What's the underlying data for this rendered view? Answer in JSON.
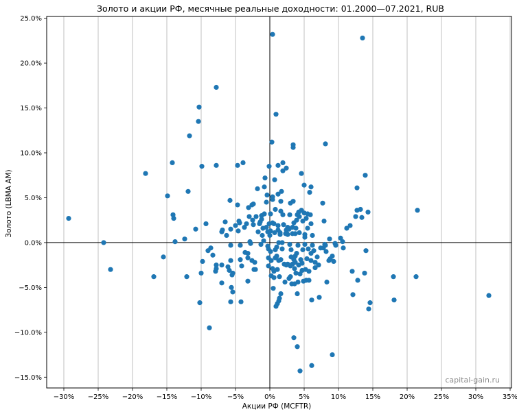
{
  "chart_data": {
    "type": "scatter",
    "title": "Золото и акции РФ, месячные реальные доходности: 01.2000—07.2021, RUB",
    "xlabel": "Акции РФ (MCFTR)",
    "ylabel": "Золото (LBMA AM)",
    "xlim": [
      -0.325,
      0.352
    ],
    "ylim": [
      -0.162,
      0.252
    ],
    "x_ticks": [
      -0.3,
      -0.25,
      -0.2,
      -0.15,
      -0.1,
      -0.05,
      0.0,
      0.05,
      0.1,
      0.15,
      0.2,
      0.25,
      0.3,
      0.35
    ],
    "x_tick_labels": [
      "−30%",
      "−25%",
      "−20%",
      "−15%",
      "−10%",
      "−5%",
      "0%",
      "5%",
      "10%",
      "15%",
      "20%",
      "25%",
      "30%",
      "35%"
    ],
    "y_ticks": [
      -0.15,
      -0.1,
      -0.05,
      0.0,
      0.05,
      0.1,
      0.15,
      0.2,
      0.25
    ],
    "y_tick_labels": [
      "−15.0%",
      "−10.0%",
      "−5.0%",
      "0.0%",
      "5.0%",
      "10.0%",
      "15.0%",
      "20.0%",
      "25.0%"
    ],
    "grid": "vertical",
    "marker_color": "#1f77b4",
    "watermark": "capital-gain.ru",
    "points": [
      [
        -0.293,
        0.027
      ],
      [
        -0.242,
        0.0
      ],
      [
        -0.232,
        -0.03
      ],
      [
        -0.181,
        0.077
      ],
      [
        -0.169,
        -0.038
      ],
      [
        -0.155,
        -0.016
      ],
      [
        -0.149,
        0.052
      ],
      [
        -0.142,
        0.089
      ],
      [
        -0.141,
        0.031
      ],
      [
        -0.14,
        0.027
      ],
      [
        -0.138,
        0.001
      ],
      [
        -0.124,
        0.004
      ],
      [
        -0.121,
        -0.038
      ],
      [
        -0.119,
        0.057
      ],
      [
        -0.117,
        0.119
      ],
      [
        -0.108,
        0.015
      ],
      [
        -0.103,
        0.151
      ],
      [
        -0.104,
        0.135
      ],
      [
        -0.102,
        -0.067
      ],
      [
        -0.099,
        0.085
      ],
      [
        -0.098,
        -0.021
      ],
      [
        -0.1,
        -0.034
      ],
      [
        -0.093,
        0.021
      ],
      [
        -0.088,
        -0.095
      ],
      [
        -0.086,
        -0.006
      ],
      [
        -0.083,
        -0.014
      ],
      [
        -0.09,
        -0.009
      ],
      [
        -0.078,
        0.173
      ],
      [
        -0.078,
        0.086
      ],
      [
        -0.078,
        -0.025
      ],
      [
        -0.079,
        -0.032
      ],
      [
        -0.078,
        -0.029
      ],
      [
        -0.07,
        0.012
      ],
      [
        -0.07,
        -0.025
      ],
      [
        -0.07,
        -0.045
      ],
      [
        -0.069,
        0.014
      ],
      [
        -0.065,
        0.023
      ],
      [
        -0.063,
        0.008
      ],
      [
        -0.061,
        -0.027
      ],
      [
        -0.059,
        -0.031
      ],
      [
        -0.058,
        0.047
      ],
      [
        -0.057,
        0.015
      ],
      [
        -0.057,
        -0.003
      ],
      [
        -0.057,
        -0.02
      ],
      [
        -0.056,
        -0.05
      ],
      [
        -0.057,
        -0.066
      ],
      [
        -0.055,
        -0.036
      ],
      [
        -0.054,
        -0.034
      ],
      [
        -0.054,
        -0.055
      ],
      [
        -0.05,
        0.019
      ],
      [
        -0.047,
        0.042
      ],
      [
        -0.047,
        0.086
      ],
      [
        -0.046,
        0.013
      ],
      [
        -0.045,
        0.024
      ],
      [
        -0.044,
        0.022
      ],
      [
        -0.043,
        -0.003
      ],
      [
        -0.043,
        -0.019
      ],
      [
        -0.041,
        -0.026
      ],
      [
        -0.042,
        -0.066
      ],
      [
        -0.039,
        0.089
      ],
      [
        -0.037,
        0.017
      ],
      [
        -0.036,
        -0.011
      ],
      [
        -0.034,
        0.021
      ],
      [
        -0.032,
        -0.043
      ],
      [
        -0.032,
        -0.017
      ],
      [
        -0.032,
        -0.012
      ],
      [
        -0.031,
        0.039
      ],
      [
        -0.03,
        0.029
      ],
      [
        -0.029,
        0.001
      ],
      [
        -0.028,
        -0.001
      ],
      [
        -0.026,
        0.042
      ],
      [
        -0.026,
        -0.02
      ],
      [
        -0.025,
        0.025
      ],
      [
        -0.024,
        0.02
      ],
      [
        -0.024,
        0.043
      ],
      [
        -0.023,
        -0.03
      ],
      [
        -0.022,
        -0.022
      ],
      [
        -0.02,
        0.029
      ],
      [
        -0.021,
        -0.03
      ],
      [
        -0.018,
        0.06
      ],
      [
        -0.017,
        0.012
      ],
      [
        -0.015,
        0.021
      ],
      [
        -0.014,
        0.023
      ],
      [
        -0.013,
        -0.002
      ],
      [
        -0.012,
        0.026
      ],
      [
        -0.012,
        0.03
      ],
      [
        -0.011,
        0.008
      ],
      [
        -0.01,
        0.016
      ],
      [
        -0.009,
        0.002
      ],
      [
        -0.008,
        0.032
      ],
      [
        -0.008,
        0.062
      ],
      [
        -0.007,
        0.072
      ],
      [
        -0.005,
        0.017
      ],
      [
        -0.005,
        0.045
      ],
      [
        -0.004,
        0.053
      ],
      [
        -0.003,
        0.012
      ],
      [
        -0.003,
        -0.004
      ],
      [
        -0.002,
        -0.007
      ],
      [
        -0.002,
        -0.017
      ],
      [
        -0.002,
        -0.026
      ],
      [
        -0.001,
        0.085
      ],
      [
        -0.001,
        0.021
      ],
      [
        0.0,
        0.008
      ],
      [
        0.001,
        0.013
      ],
      [
        0.001,
        0.032
      ],
      [
        0.001,
        -0.01
      ],
      [
        0.002,
        -0.02
      ],
      [
        0.002,
        -0.037
      ],
      [
        0.003,
        0.112
      ],
      [
        0.004,
        0.232
      ],
      [
        0.004,
        0.051
      ],
      [
        0.004,
        0.048
      ],
      [
        0.004,
        0.022
      ],
      [
        0.004,
        -0.029
      ],
      [
        0.005,
        -0.051
      ],
      [
        0.006,
        0.021
      ],
      [
        0.006,
        -0.032
      ],
      [
        0.006,
        -0.039
      ],
      [
        0.007,
        0.011
      ],
      [
        0.007,
        0.07
      ],
      [
        0.008,
        0.037
      ],
      [
        0.008,
        -0.008
      ],
      [
        0.008,
        -0.017
      ],
      [
        0.009,
        -0.071
      ],
      [
        0.009,
        0.143
      ],
      [
        0.01,
        -0.005
      ],
      [
        0.01,
        -0.015
      ],
      [
        0.011,
        -0.068
      ],
      [
        0.011,
        -0.03
      ],
      [
        0.012,
        0.086
      ],
      [
        0.012,
        0.054
      ],
      [
        0.012,
        0.019
      ],
      [
        0.012,
        0.014
      ],
      [
        0.013,
        0.0
      ],
      [
        0.013,
        -0.02
      ],
      [
        0.013,
        -0.065
      ],
      [
        0.014,
        -0.062
      ],
      [
        0.014,
        -0.038
      ],
      [
        0.015,
        0.011
      ],
      [
        0.015,
        0.009
      ],
      [
        0.016,
        0.035
      ],
      [
        0.016,
        0.046
      ],
      [
        0.016,
        -0.019
      ],
      [
        0.016,
        -0.057
      ],
      [
        0.017,
        0.057
      ],
      [
        0.018,
        0.0
      ],
      [
        0.018,
        -0.007
      ],
      [
        0.019,
        0.089
      ],
      [
        0.019,
        0.08
      ],
      [
        0.019,
        0.031
      ],
      [
        0.02,
        0.02
      ],
      [
        0.021,
        -0.024
      ],
      [
        0.022,
        -0.044
      ],
      [
        0.023,
        0.01
      ],
      [
        0.024,
        0.083
      ],
      [
        0.024,
        0.014
      ],
      [
        0.024,
        -0.025
      ],
      [
        0.025,
        0.01
      ],
      [
        0.026,
        0.017
      ],
      [
        0.026,
        0.009
      ],
      [
        0.026,
        -0.024
      ],
      [
        0.028,
        0.015
      ],
      [
        0.028,
        -0.04
      ],
      [
        0.029,
        0.031
      ],
      [
        0.029,
        -0.002
      ],
      [
        0.03,
        0.044
      ],
      [
        0.03,
        -0.026
      ],
      [
        0.03,
        -0.038
      ],
      [
        0.031,
        -0.016
      ],
      [
        0.031,
        -0.008
      ],
      [
        0.032,
        -0.046
      ],
      [
        0.033,
        0.017
      ],
      [
        0.033,
        0.01
      ],
      [
        0.033,
        -0.024
      ],
      [
        0.034,
        0.109
      ],
      [
        0.034,
        0.106
      ],
      [
        0.034,
        0.046
      ],
      [
        0.035,
        0.022
      ],
      [
        0.035,
        -0.019
      ],
      [
        0.035,
        -0.106
      ],
      [
        0.036,
        -0.046
      ],
      [
        0.036,
        -0.029
      ],
      [
        0.037,
        -0.022
      ],
      [
        0.037,
        -0.015
      ],
      [
        0.037,
        0.01
      ],
      [
        0.038,
        0.016
      ],
      [
        0.038,
        -0.034
      ],
      [
        0.039,
        0.025
      ],
      [
        0.039,
        -0.012
      ],
      [
        0.04,
        0.031
      ],
      [
        0.04,
        -0.057
      ],
      [
        0.04,
        -0.116
      ],
      [
        0.041,
        -0.003
      ],
      [
        0.041,
        -0.044
      ],
      [
        0.042,
        0.034
      ],
      [
        0.042,
        -0.025
      ],
      [
        0.043,
        0.029
      ],
      [
        0.043,
        0.011
      ],
      [
        0.044,
        -0.143
      ],
      [
        0.044,
        -0.035
      ],
      [
        0.045,
        -0.019
      ],
      [
        0.046,
        0.077
      ],
      [
        0.046,
        0.036
      ],
      [
        0.047,
        -0.023
      ],
      [
        0.047,
        -0.031
      ],
      [
        0.048,
        0.024
      ],
      [
        0.048,
        -0.008
      ],
      [
        0.049,
        -0.043
      ],
      [
        0.05,
        0.064
      ],
      [
        0.05,
        0.033
      ],
      [
        0.051,
        0.009
      ],
      [
        0.051,
        0.006
      ],
      [
        0.051,
        -0.002
      ],
      [
        0.052,
        -0.03
      ],
      [
        0.053,
        0.027
      ],
      [
        0.053,
        -0.042
      ],
      [
        0.054,
        -0.018
      ],
      [
        0.055,
        0.032
      ],
      [
        0.055,
        0.016
      ],
      [
        0.056,
        -0.007
      ],
      [
        0.057,
        -0.032
      ],
      [
        0.057,
        -0.042
      ],
      [
        0.058,
        0.056
      ],
      [
        0.059,
        0.031
      ],
      [
        0.06,
        0.062
      ],
      [
        0.06,
        0.021
      ],
      [
        0.06,
        -0.012
      ],
      [
        0.06,
        -0.02
      ],
      [
        0.061,
        -0.064
      ],
      [
        0.061,
        -0.137
      ],
      [
        0.062,
        0.008
      ],
      [
        0.062,
        -0.003
      ],
      [
        0.064,
        -0.009
      ],
      [
        0.066,
        -0.022
      ],
      [
        0.066,
        -0.028
      ],
      [
        0.069,
        -0.016
      ],
      [
        0.071,
        -0.025
      ],
      [
        0.072,
        -0.061
      ],
      [
        0.074,
        -0.006
      ],
      [
        0.077,
        0.044
      ],
      [
        0.078,
        -0.006
      ],
      [
        0.079,
        0.024
      ],
      [
        0.08,
        -0.002
      ],
      [
        0.081,
        0.11
      ],
      [
        0.081,
        -0.003
      ],
      [
        0.082,
        -0.01
      ],
      [
        0.083,
        -0.044
      ],
      [
        0.086,
        -0.02
      ],
      [
        0.087,
        0.004
      ],
      [
        0.088,
        -0.018
      ],
      [
        0.091,
        -0.125
      ],
      [
        0.091,
        -0.015
      ],
      [
        0.093,
        -0.021
      ],
      [
        0.095,
        -0.001
      ],
      [
        0.096,
        -0.003
      ],
      [
        0.103,
        0.005
      ],
      [
        0.106,
        0.001
      ],
      [
        0.107,
        -0.006
      ],
      [
        0.112,
        0.016
      ],
      [
        0.117,
        0.019
      ],
      [
        0.12,
        -0.032
      ],
      [
        0.121,
        -0.058
      ],
      [
        0.125,
        0.029
      ],
      [
        0.127,
        0.061
      ],
      [
        0.127,
        0.036
      ],
      [
        0.128,
        -0.042
      ],
      [
        0.132,
        0.037
      ],
      [
        0.134,
        0.028
      ],
      [
        0.135,
        0.228
      ],
      [
        0.138,
        -0.034
      ],
      [
        0.139,
        0.075
      ],
      [
        0.14,
        -0.009
      ],
      [
        0.143,
        0.034
      ],
      [
        0.144,
        -0.074
      ],
      [
        0.146,
        -0.067
      ],
      [
        0.18,
        -0.038
      ],
      [
        0.181,
        -0.064
      ],
      [
        0.213,
        -0.038
      ],
      [
        0.215,
        0.036
      ],
      [
        0.319,
        -0.059
      ]
    ]
  }
}
